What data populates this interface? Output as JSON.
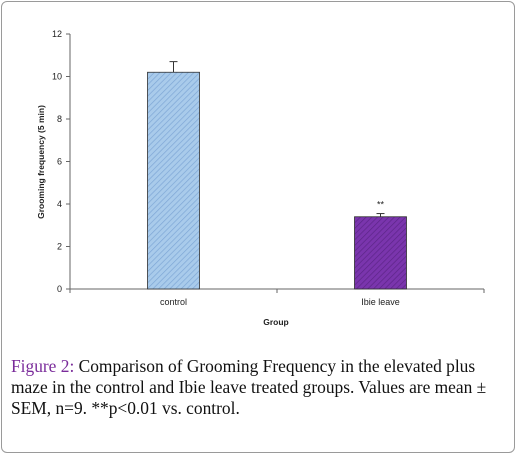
{
  "chart_data": {
    "type": "bar",
    "categories": [
      "control",
      "Ibie leave"
    ],
    "values": [
      10.2,
      3.4
    ],
    "errors": [
      0.5,
      0.15
    ],
    "significance": [
      "",
      "**"
    ],
    "bar_colors": [
      "#9dc3e6",
      "#7030a0"
    ],
    "bar_patterns": [
      "diagonal-stripe",
      "diagonal-stripe"
    ],
    "xlabel": "Group",
    "ylabel": "Grooming frequency (5 min)",
    "ylim": [
      0,
      12
    ],
    "yticks": [
      0,
      2,
      4,
      6,
      8,
      10,
      12
    ],
    "grid": false
  },
  "caption": {
    "label": "Figure 2:",
    "text": " Comparison of Grooming Frequency in the elevated plus maze in the control and Ibie leave treated groups. Values are mean ± SEM, n=9. **p<0.01 vs. control."
  }
}
